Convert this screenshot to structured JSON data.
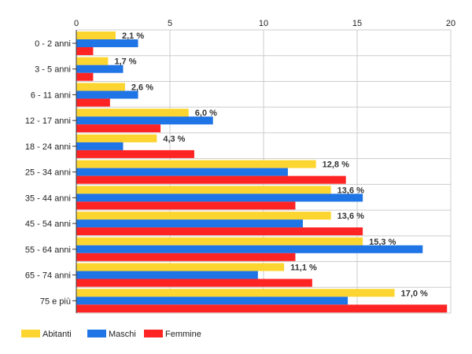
{
  "chart_data": {
    "type": "bar",
    "orientation": "horizontal",
    "categories": [
      "0 - 2 anni",
      "3 - 5 anni",
      "6 - 11 anni",
      "12 - 17 anni",
      "18 - 24 anni",
      "25 - 34 anni",
      "35 - 44 anni",
      "45 - 54 anni",
      "55 - 64 anni",
      "65 - 74 anni",
      "75 e più"
    ],
    "series": [
      {
        "name": "Abitanti",
        "color": "#fcd530",
        "values": [
          2.1,
          1.7,
          2.6,
          6.0,
          4.3,
          12.8,
          13.6,
          13.6,
          15.3,
          11.1,
          17.0
        ],
        "labels": [
          "2,1 %",
          "1,7 %",
          "2,6 %",
          "6,0 %",
          "4,3 %",
          "12,8 %",
          "13,6 %",
          "13,6 %",
          "15,3 %",
          "11,1 %",
          "17,0 %"
        ]
      },
      {
        "name": "Maschi",
        "color": "#1f74e6",
        "values": [
          3.3,
          2.5,
          3.3,
          7.3,
          2.5,
          11.3,
          15.3,
          12.1,
          18.5,
          9.7,
          14.5
        ]
      },
      {
        "name": "Femmine",
        "color": "#ff2424",
        "values": [
          0.9,
          0.9,
          1.8,
          4.5,
          6.3,
          14.4,
          11.7,
          15.3,
          11.7,
          12.6,
          19.8
        ]
      }
    ],
    "xlim": [
      0,
      20
    ],
    "xticks": [
      0,
      5,
      10,
      15,
      20
    ],
    "xtick_labels": [
      "0",
      "5",
      "10",
      "15",
      "20"
    ],
    "title": "",
    "xlabel": "",
    "ylabel": "",
    "grid": true,
    "legend_position": "bottom-left"
  }
}
